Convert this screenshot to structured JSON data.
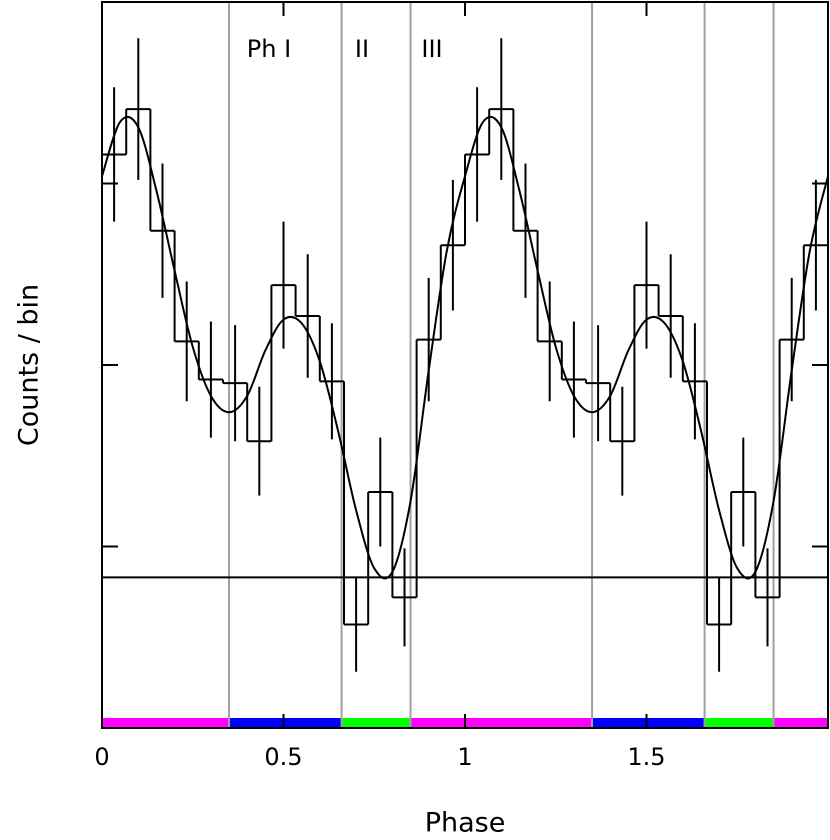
{
  "chart_data": {
    "type": "histogram",
    "xlabel": "Phase",
    "ylabel": "Counts / bin",
    "annotations": [
      "Ph I",
      "II",
      "III"
    ],
    "bins": [
      0,
      0.0667,
      0.1333,
      0.2,
      0.2667,
      0.3333,
      0.4,
      0.4667,
      0.5333,
      0.6,
      0.6667,
      0.7333,
      0.8,
      0.8667,
      0.9333,
      1,
      1.0667,
      1.1333,
      1.2,
      1.2667,
      1.3333,
      1.4,
      1.4667,
      1.5333,
      1.6,
      1.6667,
      1.7333,
      1.8,
      1.8667,
      1.9333,
      2
    ],
    "values": [
      3.16,
      3.41,
      2.74,
      2.13,
      1.92,
      1.9,
      1.58,
      2.44,
      2.27,
      1.91,
      0.57,
      1.3,
      0.72,
      2.14,
      2.66,
      3.16,
      3.41,
      2.74,
      2.13,
      1.92,
      1.9,
      1.58,
      2.44,
      2.27,
      1.91,
      0.57,
      1.3,
      0.72,
      2.14,
      2.66
    ],
    "errors": [
      0.37,
      0.39,
      0.37,
      0.33,
      0.32,
      0.32,
      0.3,
      0.35,
      0.34,
      0.32,
      0.26,
      0.3,
      0.27,
      0.34,
      0.36,
      0.37,
      0.39,
      0.37,
      0.33,
      0.32,
      0.32,
      0.3,
      0.35,
      0.34,
      0.32,
      0.26,
      0.3,
      0.27,
      0.34,
      0.36
    ],
    "color": "#000000",
    "fit": {
      "x": [
        0,
        0.05,
        0.1,
        0.15,
        0.2,
        0.25,
        0.3,
        0.35,
        0.4,
        0.45,
        0.5,
        0.55,
        0.6,
        0.65,
        0.7,
        0.75,
        0.8,
        0.85,
        0.9,
        0.95,
        1,
        1.05,
        1.1,
        1.15,
        1.2,
        1.25,
        1.3,
        1.35,
        1.4,
        1.45,
        1.5,
        1.55,
        1.6,
        1.65,
        1.7,
        1.75,
        1.8,
        1.85,
        1.9,
        1.95,
        2
      ],
      "values": [
        3.04,
        3.34,
        3.31,
        2.96,
        2.52,
        2.1,
        1.83,
        1.74,
        1.83,
        2.08,
        2.25,
        2.23,
        2.02,
        1.64,
        1.2,
        0.88,
        0.86,
        1.25,
        1.97,
        2.63,
        3.04,
        3.34,
        3.31,
        2.96,
        2.52,
        2.1,
        1.83,
        1.74,
        1.83,
        2.08,
        2.25,
        2.23,
        2.02,
        1.64,
        1.2,
        0.88,
        0.86,
        1.25,
        1.97,
        2.63,
        3.04
      ]
    },
    "background_level": 0.83,
    "phase_boundaries": [
      0.35,
      0.66,
      0.85,
      1.35,
      1.66,
      1.85
    ],
    "phase_bands": [
      {
        "start": 0,
        "end": 0.35,
        "color": "#ff00ff"
      },
      {
        "start": 0.35,
        "end": 0.66,
        "color": "#0000ff"
      },
      {
        "start": 0.66,
        "end": 0.85,
        "color": "#00ff00"
      },
      {
        "start": 0.85,
        "end": 1.35,
        "color": "#ff00ff"
      },
      {
        "start": 1.35,
        "end": 1.66,
        "color": "#0000ff"
      },
      {
        "start": 1.66,
        "end": 1.85,
        "color": "#00ff00"
      },
      {
        "start": 1.85,
        "end": 2,
        "color": "#ff00ff"
      }
    ],
    "xlim": [
      0,
      2
    ],
    "xticks": [
      0,
      0.5,
      1,
      1.5
    ],
    "ylim": [
      0,
      4
    ],
    "yticks": [
      1,
      2,
      3
    ]
  }
}
